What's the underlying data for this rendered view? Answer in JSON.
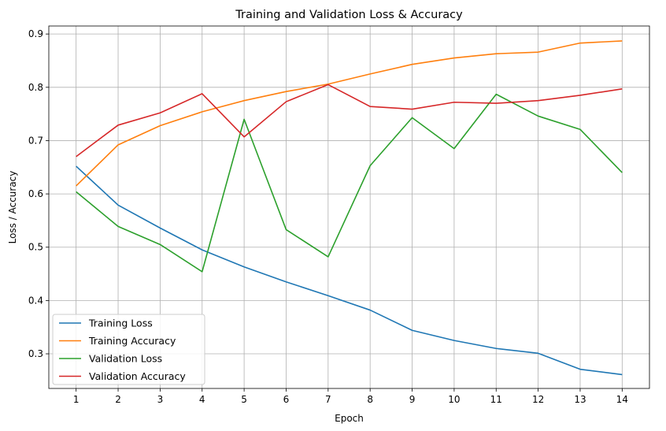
{
  "chart_data": {
    "type": "line",
    "title": "Training and Validation Loss & Accuracy",
    "xlabel": "Epoch",
    "ylabel": "Loss / Accuracy",
    "x": [
      1,
      2,
      3,
      4,
      5,
      6,
      7,
      8,
      9,
      10,
      11,
      12,
      13,
      14
    ],
    "xlim": [
      0.35,
      14.65
    ],
    "ylim": [
      0.235,
      0.915
    ],
    "yticks": [
      0.3,
      0.4,
      0.5,
      0.6,
      0.7,
      0.8,
      0.9
    ],
    "ytick_labels": [
      "0.3",
      "0.4",
      "0.5",
      "0.6",
      "0.7",
      "0.8",
      "0.9"
    ],
    "xtick_labels": [
      "1",
      "2",
      "3",
      "4",
      "5",
      "6",
      "7",
      "8",
      "9",
      "10",
      "11",
      "12",
      "13",
      "14"
    ],
    "grid": true,
    "legend_position": "lower-left",
    "series": [
      {
        "name": "Training Loss",
        "color": "#1f77b4",
        "values": [
          0.652,
          0.579,
          0.536,
          0.495,
          0.463,
          0.435,
          0.409,
          0.382,
          0.344,
          0.325,
          0.31,
          0.301,
          0.271,
          0.261
        ]
      },
      {
        "name": "Training Accuracy",
        "color": "#ff7f0e",
        "values": [
          0.615,
          0.692,
          0.728,
          0.754,
          0.775,
          0.792,
          0.806,
          0.825,
          0.843,
          0.855,
          0.863,
          0.866,
          0.883,
          0.887
        ]
      },
      {
        "name": "Validation Loss",
        "color": "#2ca02c",
        "values": [
          0.604,
          0.539,
          0.505,
          0.454,
          0.74,
          0.533,
          0.482,
          0.653,
          0.743,
          0.685,
          0.787,
          0.746,
          0.721,
          0.64
        ]
      },
      {
        "name": "Validation Accuracy",
        "color": "#d62728",
        "values": [
          0.67,
          0.729,
          0.752,
          0.788,
          0.707,
          0.773,
          0.805,
          0.764,
          0.759,
          0.772,
          0.77,
          0.775,
          0.785,
          0.797
        ]
      }
    ]
  }
}
